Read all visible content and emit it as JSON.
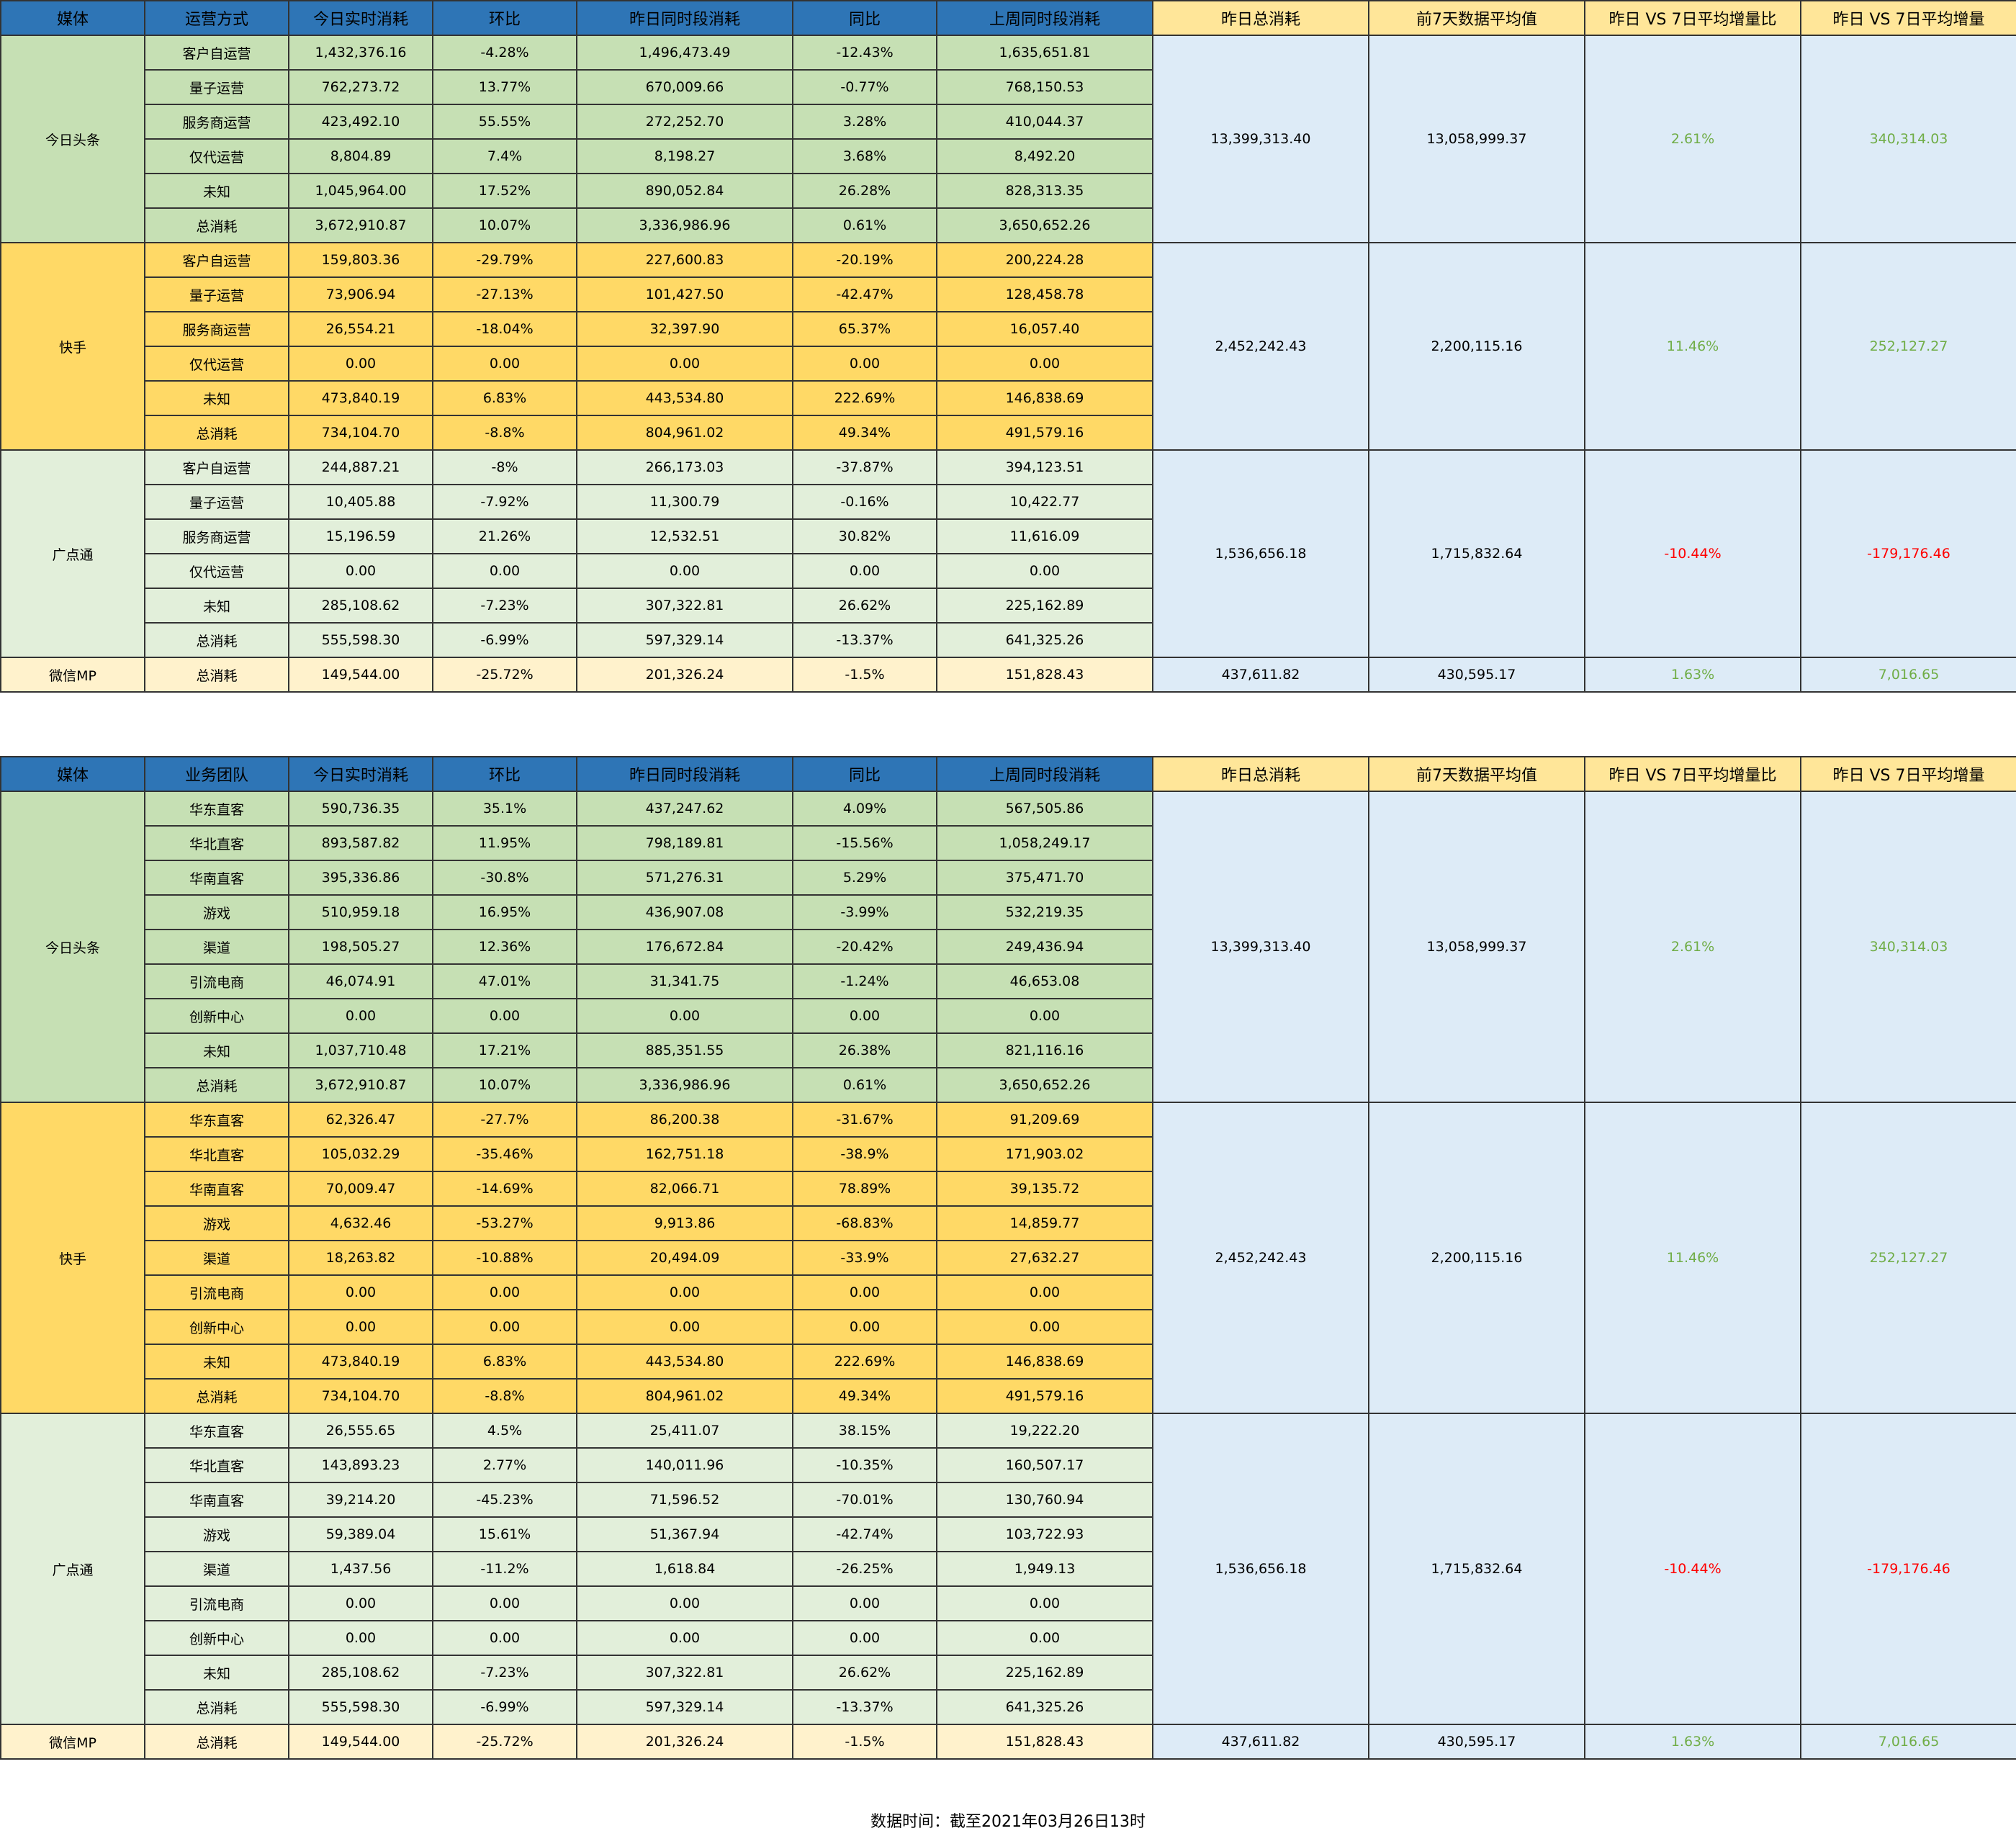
{
  "tables": [
    {
      "headers": [
        "媒体",
        "运营方式",
        "今日实时消耗",
        "环比",
        "昨日同时段消耗",
        "同比",
        "上周同时段消耗",
        "昨日总消耗",
        "前7天数据平均值",
        "昨日 VS 7日平均增量比",
        "昨日 VS 7日平均增量"
      ],
      "groups": [
        {
          "media": "今日头条",
          "style": "tt",
          "summary": [
            "13,399,313.40",
            "13,058,999.37",
            "2.61%",
            "340,314.03"
          ],
          "summary_signs": [
            "",
            "",
            "pos",
            "pos"
          ],
          "rows": [
            [
              "客户自运营",
              "1,432,376.16",
              "-4.28%",
              "1,496,473.49",
              "-12.43%",
              "1,635,651.81"
            ],
            [
              "量子运营",
              "762,273.72",
              "13.77%",
              "670,009.66",
              "-0.77%",
              "768,150.53"
            ],
            [
              "服务商运营",
              "423,492.10",
              "55.55%",
              "272,252.70",
              "3.28%",
              "410,044.37"
            ],
            [
              "仅代运营",
              "8,804.89",
              "7.4%",
              "8,198.27",
              "3.68%",
              "8,492.20"
            ],
            [
              "未知",
              "1,045,964.00",
              "17.52%",
              "890,052.84",
              "26.28%",
              "828,313.35"
            ],
            [
              "总消耗",
              "3,672,910.87",
              "10.07%",
              "3,336,986.96",
              "0.61%",
              "3,650,652.26"
            ]
          ]
        },
        {
          "media": "快手",
          "style": "ks",
          "summary": [
            "2,452,242.43",
            "2,200,115.16",
            "11.46%",
            "252,127.27"
          ],
          "summary_signs": [
            "",
            "",
            "pos",
            "pos"
          ],
          "rows": [
            [
              "客户自运营",
              "159,803.36",
              "-29.79%",
              "227,600.83",
              "-20.19%",
              "200,224.28"
            ],
            [
              "量子运营",
              "73,906.94",
              "-27.13%",
              "101,427.50",
              "-42.47%",
              "128,458.78"
            ],
            [
              "服务商运营",
              "26,554.21",
              "-18.04%",
              "32,397.90",
              "65.37%",
              "16,057.40"
            ],
            [
              "仅代运营",
              "0.00",
              "0.00",
              "0.00",
              "0.00",
              "0.00"
            ],
            [
              "未知",
              "473,840.19",
              "6.83%",
              "443,534.80",
              "222.69%",
              "146,838.69"
            ],
            [
              "总消耗",
              "734,104.70",
              "-8.8%",
              "804,961.02",
              "49.34%",
              "491,579.16"
            ]
          ]
        },
        {
          "media": "广点通",
          "style": "gdt",
          "summary": [
            "1,536,656.18",
            "1,715,832.64",
            "-10.44%",
            "-179,176.46"
          ],
          "summary_signs": [
            "",
            "",
            "neg",
            "neg"
          ],
          "rows": [
            [
              "客户自运营",
              "244,887.21",
              "-8%",
              "266,173.03",
              "-37.87%",
              "394,123.51"
            ],
            [
              "量子运营",
              "10,405.88",
              "-7.92%",
              "11,300.79",
              "-0.16%",
              "10,422.77"
            ],
            [
              "服务商运营",
              "15,196.59",
              "21.26%",
              "12,532.51",
              "30.82%",
              "11,616.09"
            ],
            [
              "仅代运营",
              "0.00",
              "0.00",
              "0.00",
              "0.00",
              "0.00"
            ],
            [
              "未知",
              "285,108.62",
              "-7.23%",
              "307,322.81",
              "26.62%",
              "225,162.89"
            ],
            [
              "总消耗",
              "555,598.30",
              "-6.99%",
              "597,329.14",
              "-13.37%",
              "641,325.26"
            ]
          ]
        },
        {
          "media": "微信MP",
          "style": "wx",
          "summary": [
            "437,611.82",
            "430,595.17",
            "1.63%",
            "7,016.65"
          ],
          "summary_signs": [
            "",
            "",
            "pos",
            "pos"
          ],
          "rows": [
            [
              "总消耗",
              "149,544.00",
              "-25.72%",
              "201,326.24",
              "-1.5%",
              "151,828.43"
            ]
          ]
        }
      ]
    },
    {
      "headers": [
        "媒体",
        "业务团队",
        "今日实时消耗",
        "环比",
        "昨日同时段消耗",
        "同比",
        "上周同时段消耗",
        "昨日总消耗",
        "前7天数据平均值",
        "昨日 VS 7日平均增量比",
        "昨日 VS 7日平均增量"
      ],
      "groups": [
        {
          "media": "今日头条",
          "style": "tt",
          "summary": [
            "13,399,313.40",
            "13,058,999.37",
            "2.61%",
            "340,314.03"
          ],
          "summary_signs": [
            "",
            "",
            "pos",
            "pos"
          ],
          "rows": [
            [
              "华东直客",
              "590,736.35",
              "35.1%",
              "437,247.62",
              "4.09%",
              "567,505.86"
            ],
            [
              "华北直客",
              "893,587.82",
              "11.95%",
              "798,189.81",
              "-15.56%",
              "1,058,249.17"
            ],
            [
              "华南直客",
              "395,336.86",
              "-30.8%",
              "571,276.31",
              "5.29%",
              "375,471.70"
            ],
            [
              "游戏",
              "510,959.18",
              "16.95%",
              "436,907.08",
              "-3.99%",
              "532,219.35"
            ],
            [
              "渠道",
              "198,505.27",
              "12.36%",
              "176,672.84",
              "-20.42%",
              "249,436.94"
            ],
            [
              "引流电商",
              "46,074.91",
              "47.01%",
              "31,341.75",
              "-1.24%",
              "46,653.08"
            ],
            [
              "创新中心",
              "0.00",
              "0.00",
              "0.00",
              "0.00",
              "0.00"
            ],
            [
              "未知",
              "1,037,710.48",
              "17.21%",
              "885,351.55",
              "26.38%",
              "821,116.16"
            ],
            [
              "总消耗",
              "3,672,910.87",
              "10.07%",
              "3,336,986.96",
              "0.61%",
              "3,650,652.26"
            ]
          ]
        },
        {
          "media": "快手",
          "style": "ks",
          "summary": [
            "2,452,242.43",
            "2,200,115.16",
            "11.46%",
            "252,127.27"
          ],
          "summary_signs": [
            "",
            "",
            "pos",
            "pos"
          ],
          "rows": [
            [
              "华东直客",
              "62,326.47",
              "-27.7%",
              "86,200.38",
              "-31.67%",
              "91,209.69"
            ],
            [
              "华北直客",
              "105,032.29",
              "-35.46%",
              "162,751.18",
              "-38.9%",
              "171,903.02"
            ],
            [
              "华南直客",
              "70,009.47",
              "-14.69%",
              "82,066.71",
              "78.89%",
              "39,135.72"
            ],
            [
              "游戏",
              "4,632.46",
              "-53.27%",
              "9,913.86",
              "-68.83%",
              "14,859.77"
            ],
            [
              "渠道",
              "18,263.82",
              "-10.88%",
              "20,494.09",
              "-33.9%",
              "27,632.27"
            ],
            [
              "引流电商",
              "0.00",
              "0.00",
              "0.00",
              "0.00",
              "0.00"
            ],
            [
              "创新中心",
              "0.00",
              "0.00",
              "0.00",
              "0.00",
              "0.00"
            ],
            [
              "未知",
              "473,840.19",
              "6.83%",
              "443,534.80",
              "222.69%",
              "146,838.69"
            ],
            [
              "总消耗",
              "734,104.70",
              "-8.8%",
              "804,961.02",
              "49.34%",
              "491,579.16"
            ]
          ]
        },
        {
          "media": "广点通",
          "style": "gdt",
          "summary": [
            "1,536,656.18",
            "1,715,832.64",
            "-10.44%",
            "-179,176.46"
          ],
          "summary_signs": [
            "",
            "",
            "neg",
            "neg"
          ],
          "rows": [
            [
              "华东直客",
              "26,555.65",
              "4.5%",
              "25,411.07",
              "38.15%",
              "19,222.20"
            ],
            [
              "华北直客",
              "143,893.23",
              "2.77%",
              "140,011.96",
              "-10.35%",
              "160,507.17"
            ],
            [
              "华南直客",
              "39,214.20",
              "-45.23%",
              "71,596.52",
              "-70.01%",
              "130,760.94"
            ],
            [
              "游戏",
              "59,389.04",
              "15.61%",
              "51,367.94",
              "-42.74%",
              "103,722.93"
            ],
            [
              "渠道",
              "1,437.56",
              "-11.2%",
              "1,618.84",
              "-26.25%",
              "1,949.13"
            ],
            [
              "引流电商",
              "0.00",
              "0.00",
              "0.00",
              "0.00",
              "0.00"
            ],
            [
              "创新中心",
              "0.00",
              "0.00",
              "0.00",
              "0.00",
              "0.00"
            ],
            [
              "未知",
              "285,108.62",
              "-7.23%",
              "307,322.81",
              "26.62%",
              "225,162.89"
            ],
            [
              "总消耗",
              "555,598.30",
              "-6.99%",
              "597,329.14",
              "-13.37%",
              "641,325.26"
            ]
          ]
        },
        {
          "media": "微信MP",
          "style": "wx",
          "summary": [
            "437,611.82",
            "430,595.17",
            "1.63%",
            "7,016.65"
          ],
          "summary_signs": [
            "",
            "",
            "pos",
            "pos"
          ],
          "rows": [
            [
              "总消耗",
              "149,544.00",
              "-25.72%",
              "201,326.24",
              "-1.5%",
              "151,828.43"
            ]
          ]
        }
      ]
    }
  ],
  "footer": "数据时间：截至2021年03月26日13时",
  "colors": {
    "header_blue": "#2e75b6",
    "header_yellow": "#ffe699",
    "toutiao_green": "#c6e0b4",
    "kuaishou_gold": "#ffd966",
    "gdt_light_green": "#e2efda",
    "wechat_light_yellow": "#fff2cc",
    "summary_blue": "#ddebf7",
    "positive": "#70ad47",
    "negative": "#ff0000"
  }
}
